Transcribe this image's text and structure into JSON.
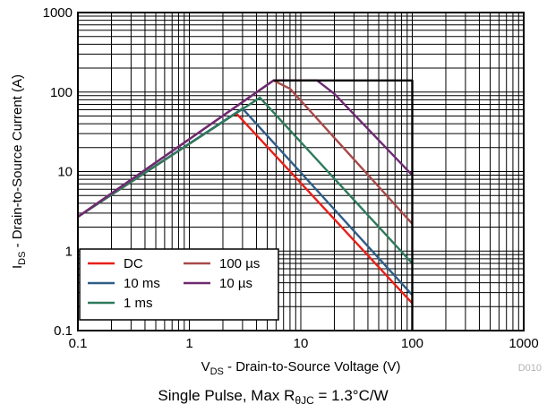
{
  "chart_data": {
    "type": "line",
    "title": "",
    "xlabel": {
      "main": "V",
      "sub": "DS",
      "rest": " - Drain-to-Source Voltage (V)"
    },
    "ylabel": {
      "main": "I",
      "sub": "DS",
      "rest": " - Drain-to-Source Current (A)"
    },
    "xscale": "log",
    "yscale": "log",
    "xlim": [
      0.1,
      1000
    ],
    "ylim": [
      0.1,
      1000
    ],
    "grid": true,
    "x_ticks": [
      "0.1",
      "1",
      "10",
      "100",
      "1000"
    ],
    "y_ticks": [
      "0.1",
      "1",
      "10",
      "100",
      "1000"
    ],
    "legend_position": "bottom-left",
    "series": [
      {
        "name": "DC",
        "color": "#e8201a",
        "x": [
          0.1,
          2.5,
          2.7,
          100
        ],
        "y": [
          2.7,
          52,
          52,
          0.22
        ]
      },
      {
        "name": "10 ms",
        "color": "#2f5d87",
        "x": [
          0.1,
          3.0,
          100
        ],
        "y": [
          2.7,
          62,
          0.28
        ]
      },
      {
        "name": "1 ms",
        "color": "#2f7a5c",
        "x": [
          0.1,
          4.3,
          100
        ],
        "y": [
          2.7,
          85,
          0.7
        ]
      },
      {
        "name": "100 µs",
        "color": "#a84a4a",
        "x": [
          0.1,
          5.7,
          8,
          100
        ],
        "y": [
          2.7,
          140,
          110,
          2.2
        ]
      },
      {
        "name": "10 µs",
        "color": "#6d2a72",
        "x": [
          0.1,
          5.7,
          14,
          20,
          100
        ],
        "y": [
          2.7,
          140,
          140,
          95,
          9
        ]
      },
      {
        "name": "",
        "color": "#a8a8a8",
        "x": [
          0.1,
          5.7
        ],
        "y": [
          2.7,
          140
        ]
      },
      {
        "name": "",
        "color": "#000000",
        "x": [
          5.7,
          100,
          100
        ],
        "y": [
          140,
          140,
          0.1
        ]
      }
    ],
    "note": "D010",
    "caption": {
      "main": "Single Pulse, Max R",
      "sub": "θJC",
      "rest": " = 1.3°C/W"
    }
  }
}
